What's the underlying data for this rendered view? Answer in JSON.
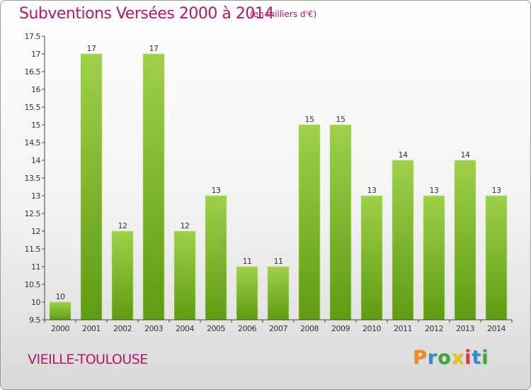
{
  "header": {
    "title": "Subventions Versées 2000 à 2014",
    "subtitle": "(en milliers d'€)"
  },
  "commune": "VIEILLE-TOULOUSE",
  "logo": {
    "text": "Proxiti",
    "colors": [
      "#f08a1c",
      "#2a8fd6",
      "#3aa83a",
      "#e8c11a",
      "#e0334a",
      "#2a8fd6",
      "#3aa83a"
    ]
  },
  "colors": {
    "accent": "#b5176a",
    "bar_light": "#9fd04a",
    "bar_dark": "#5e9c12"
  },
  "chart_data": {
    "type": "bar",
    "title": "Subventions Versées 2000 à 2014",
    "xlabel": "",
    "ylabel": "",
    "categories": [
      "2000",
      "2001",
      "2002",
      "2003",
      "2004",
      "2005",
      "2006",
      "2007",
      "2008",
      "2009",
      "2010",
      "2011",
      "2012",
      "2013",
      "2014"
    ],
    "values": [
      10,
      17,
      12,
      17,
      12,
      13,
      11,
      11,
      15,
      15,
      13,
      14,
      13,
      14,
      13
    ],
    "ylim": [
      9.5,
      17.5
    ],
    "yticks": [
      "9.5",
      "10",
      "10.5",
      "11",
      "11.5",
      "12",
      "12.5",
      "13",
      "13.5",
      "14",
      "14.5",
      "15",
      "15.5",
      "16",
      "16.5",
      "17",
      "17.5"
    ],
    "grid": false,
    "legend": "none"
  }
}
